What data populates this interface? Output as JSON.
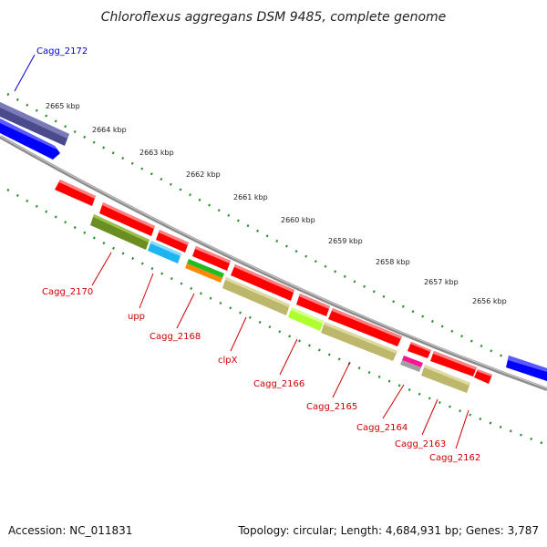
{
  "title": "Chloroflexus aggregans DSM 9485, complete genome",
  "footer": {
    "accession": "Accession: NC_011831",
    "summary": "Topology: circular; Length: 4,684,931 bp; Genes: 3,787"
  },
  "ticks": [
    "2665 kbp",
    "2664 kbp",
    "2663 kbp",
    "2662 kbp",
    "2661 kbp",
    "2660 kbp",
    "2659 kbp",
    "2658 kbp",
    "2657 kbp",
    "2656 kbp"
  ],
  "labels": {
    "cagg_2172": "Cagg_2172",
    "cagg_2170": "Cagg_2170",
    "upp": "upp",
    "cagg_2168": "Cagg_2168",
    "clpx": "clpX",
    "cagg_2166": "Cagg_2166",
    "cagg_2165": "Cagg_2165",
    "cagg_2164": "Cagg_2164",
    "cagg_2163": "Cagg_2163",
    "cagg_2162": "Cagg_2162"
  },
  "colors": {
    "backbone": "#8c8c8c",
    "dots": "#2e8b2e",
    "outer_gene": "#4a4a8c",
    "blue_gene": "#0000ff",
    "cds_red": "#ff0000",
    "olive": "#6b8e23",
    "khaki": "#bdb76b",
    "cyan": "#1eb4f0",
    "label_red": "#cc0000",
    "label_blue": "#0000cc"
  }
}
